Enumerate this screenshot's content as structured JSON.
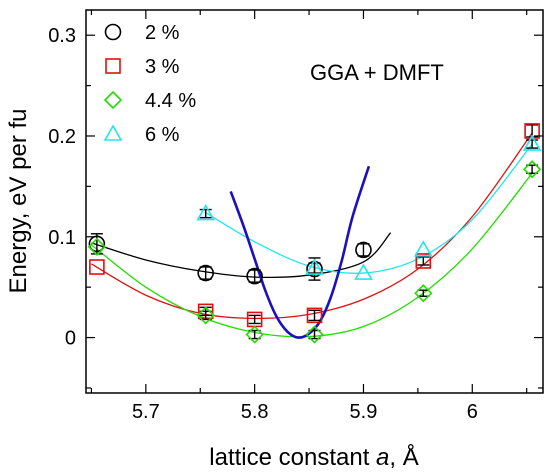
{
  "chart_data": {
    "type": "scatter",
    "annotation": "GGA + DMFT",
    "xlabel_prefix": "lattice constant ",
    "xlabel_var": "a",
    "xlabel_suffix": ", Å",
    "ylabel": "Energy, eV per fu",
    "xlim": [
      5.645,
      6.065
    ],
    "ylim": [
      -0.055,
      0.325
    ],
    "xticks": [
      5.7,
      5.8,
      5.9,
      6.0
    ],
    "xtick_labels": [
      "5.7",
      "5.8",
      "5.9",
      "6"
    ],
    "yticks": [
      0,
      0.1,
      0.2,
      0.3
    ],
    "ytick_labels": [
      "0",
      "0.1",
      "0.2",
      "0.3"
    ],
    "legend_position": "top-left",
    "series": [
      {
        "name": "2 %",
        "marker": "circle",
        "color": "#000000",
        "points": [
          [
            5.655,
            0.093
          ],
          [
            5.755,
            0.064
          ],
          [
            5.8,
            0.061
          ],
          [
            5.855,
            0.068
          ],
          [
            5.9,
            0.087
          ]
        ],
        "errors": [
          0.01,
          0.006,
          0.006,
          0.011,
          0.006
        ],
        "fit": [
          [
            5.65,
            0.094
          ],
          [
            5.7,
            0.077
          ],
          [
            5.75,
            0.066
          ],
          [
            5.8,
            0.06
          ],
          [
            5.85,
            0.062
          ],
          [
            5.9,
            0.075
          ],
          [
            5.925,
            0.104
          ]
        ]
      },
      {
        "name": "3 %",
        "marker": "square",
        "color": "#e01010",
        "points": [
          [
            5.655,
            0.07
          ],
          [
            5.755,
            0.026
          ],
          [
            5.8,
            0.018
          ],
          [
            5.855,
            0.022
          ],
          [
            5.955,
            0.076
          ],
          [
            6.055,
            0.205
          ]
        ],
        "errors": [
          0,
          0.004,
          0.004,
          0.005,
          0.004,
          0.006
        ],
        "fit": [
          [
            5.65,
            0.073
          ],
          [
            5.7,
            0.042
          ],
          [
            5.75,
            0.024
          ],
          [
            5.8,
            0.019
          ],
          [
            5.85,
            0.023
          ],
          [
            5.9,
            0.038
          ],
          [
            5.95,
            0.068
          ],
          [
            6.0,
            0.12
          ],
          [
            6.055,
            0.203
          ]
        ]
      },
      {
        "name": "4.4 %",
        "marker": "diamond",
        "color": "#22dd00",
        "points": [
          [
            5.655,
            0.09
          ],
          [
            5.755,
            0.022
          ],
          [
            5.8,
            0.003
          ],
          [
            5.855,
            0.003
          ],
          [
            5.955,
            0.044
          ],
          [
            6.055,
            0.167
          ]
        ],
        "errors": [
          0,
          0.004,
          0.004,
          0.004,
          0.003,
          0.004
        ],
        "fit": [
          [
            5.65,
            0.092
          ],
          [
            5.7,
            0.05
          ],
          [
            5.75,
            0.021
          ],
          [
            5.8,
            0.005
          ],
          [
            5.85,
            0.001
          ],
          [
            5.9,
            0.011
          ],
          [
            5.95,
            0.04
          ],
          [
            6.0,
            0.088
          ],
          [
            6.055,
            0.163
          ]
        ]
      },
      {
        "name": "6 %",
        "marker": "triangle",
        "color": "#22e5f0",
        "points": [
          [
            5.755,
            0.123
          ],
          [
            5.855,
            0.069
          ],
          [
            5.9,
            0.064
          ],
          [
            5.955,
            0.087
          ],
          [
            6.055,
            0.192
          ]
        ],
        "errors": [
          0.004,
          0.005,
          0,
          0,
          0.004
        ],
        "fit": [
          [
            5.755,
            0.124
          ],
          [
            5.8,
            0.095
          ],
          [
            5.85,
            0.071
          ],
          [
            5.9,
            0.064
          ],
          [
            5.95,
            0.078
          ],
          [
            6.0,
            0.117
          ],
          [
            6.055,
            0.192
          ]
        ]
      }
    ],
    "extra_curve": {
      "color": "#1a10c0",
      "points": [
        [
          5.778,
          0.145
        ],
        [
          5.79,
          0.11
        ],
        [
          5.8,
          0.078
        ],
        [
          5.81,
          0.046
        ],
        [
          5.82,
          0.021
        ],
        [
          5.83,
          0.006
        ],
        [
          5.84,
          0.0
        ],
        [
          5.85,
          0.004
        ],
        [
          5.86,
          0.016
        ],
        [
          5.87,
          0.04
        ],
        [
          5.88,
          0.076
        ],
        [
          5.89,
          0.12
        ],
        [
          5.905,
          0.17
        ]
      ]
    }
  }
}
